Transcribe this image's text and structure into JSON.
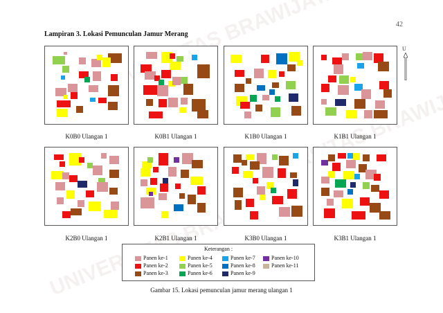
{
  "page": {
    "number": "42",
    "heading": "Lampiran 3. Lokasi Pemunculan Jamur Merang",
    "north_label": "U",
    "figure_caption": "Gambar 15. Lokasi pemunculan jamur merang ulangan 1",
    "watermark": "UNIVERSITAS BRAWIJAYA"
  },
  "colors": {
    "p1": "#d99597",
    "p2": "#ee1111",
    "p3": "#984a16",
    "p4": "#ffff00",
    "p5": "#92d050",
    "p6": "#00a651",
    "p7": "#1aa3e8",
    "p8": "#0070c0",
    "p9": "#1f2a6b",
    "p10": "#7030a0",
    "p11": "#c4b59b"
  },
  "legend": {
    "title": "Keterangan :",
    "items": [
      {
        "key": "p1",
        "label": "Panen ke-1"
      },
      {
        "key": "p2",
        "label": "Panen ke-2"
      },
      {
        "key": "p3",
        "label": "Panen ke-3"
      },
      {
        "key": "p4",
        "label": "Panen ke-4"
      },
      {
        "key": "p5",
        "label": "Panen ke-5"
      },
      {
        "key": "p6",
        "label": "Panen ke-6"
      },
      {
        "key": "p7",
        "label": "Panen ke-7"
      },
      {
        "key": "p8",
        "label": "Panen ke-8"
      },
      {
        "key": "p9",
        "label": "Panen ke-9"
      },
      {
        "key": "p10",
        "label": "Panen ke-10"
      },
      {
        "key": "p11",
        "label": "Panen ke-11"
      }
    ]
  },
  "plots": [
    {
      "caption": "K0B0 Ulangan 1"
    },
    {
      "caption": "K0B1 Ulangan 1"
    },
    {
      "caption": "K1B0 Ulangan 1"
    },
    {
      "caption": "K1B1 Ulangan 1"
    },
    {
      "caption": "K2B0 Ulangan 1"
    },
    {
      "caption": "K2B1 Ulangan 1"
    },
    {
      "caption": "K3B0 Ulangan 1"
    },
    {
      "caption": "K3B1 Ulangan 1"
    }
  ]
}
